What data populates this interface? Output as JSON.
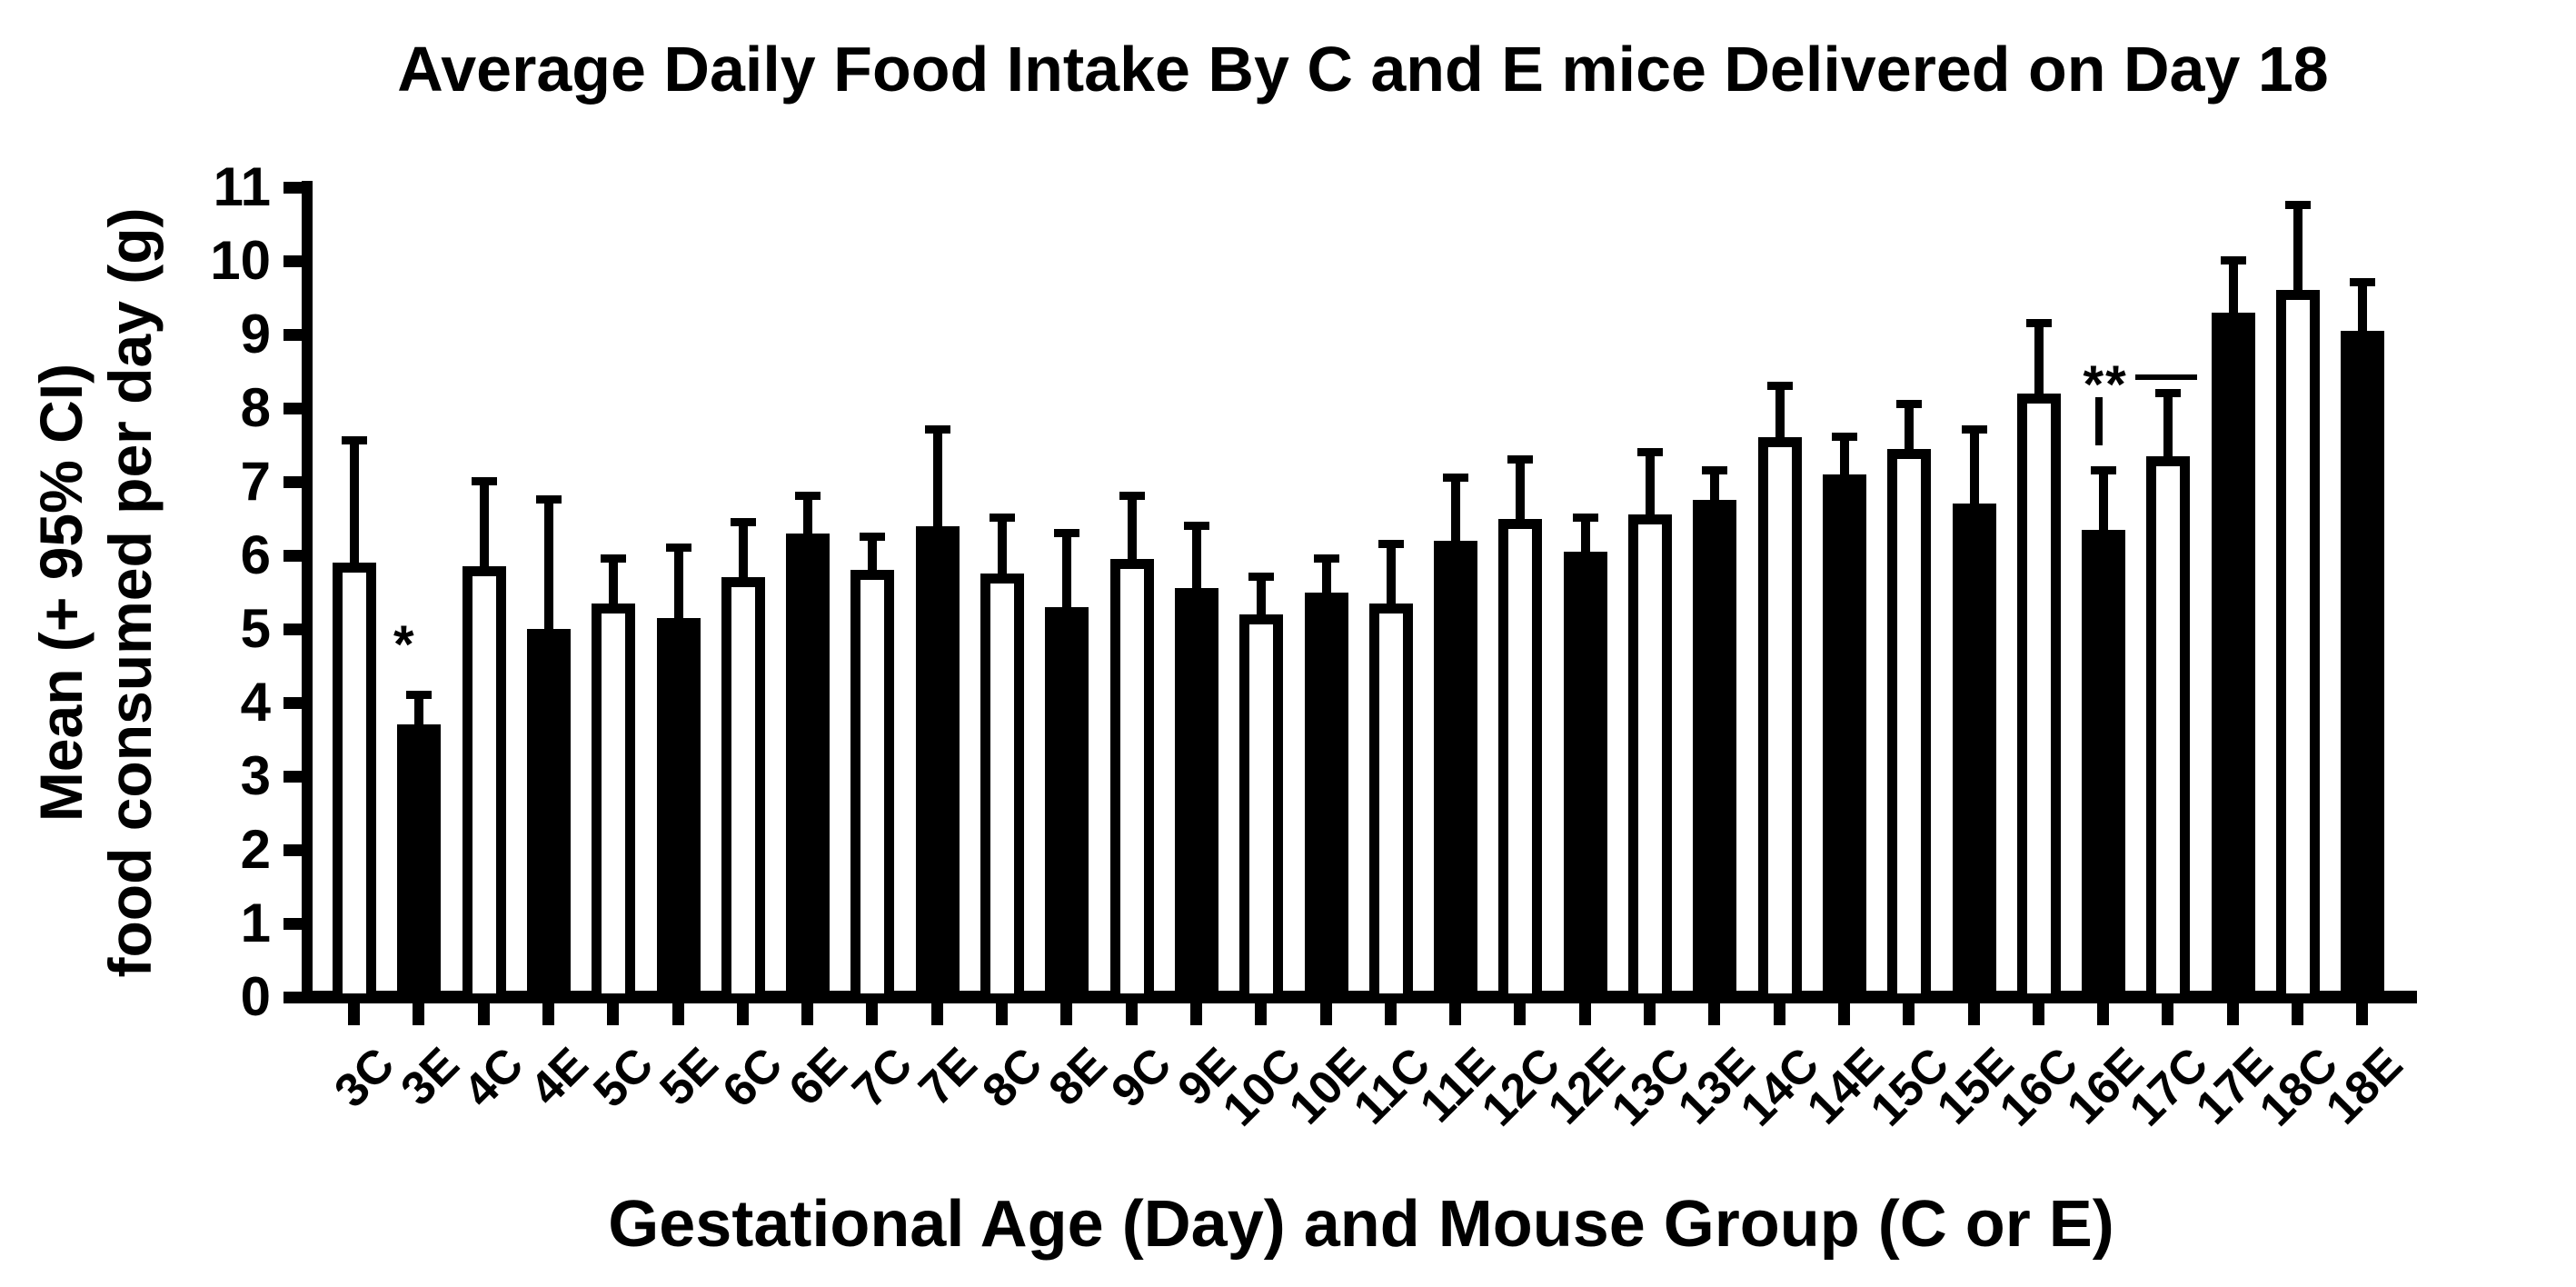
{
  "colors": {
    "foreground": "#000000",
    "background": "#FFFFFF"
  },
  "chart_data": {
    "type": "bar",
    "title": "Average Daily Food Intake By C and E mice Delivered on Day 18",
    "xlabel": "Gestational Age (Day) and Mouse Group (C or E)",
    "ylabel_line1": "Mean (+ 95% CI)",
    "ylabel_line2": "food consumed per day (g)",
    "ylim": [
      0,
      11
    ],
    "ytick_labels": [
      "0",
      "1",
      "2",
      "3",
      "4",
      "5",
      "6",
      "7",
      "8",
      "9",
      "10",
      "11"
    ],
    "grid": false,
    "legend_position": "none",
    "bar_styles": {
      "C": {
        "fill": "#FFFFFF",
        "outline": "#000000"
      },
      "E": {
        "fill": "#000000",
        "outline": "#000000"
      }
    },
    "error_bars": "upper 95% CI only",
    "categories": [
      "3C",
      "3E",
      "4C",
      "4E",
      "5C",
      "5E",
      "6C",
      "6E",
      "7C",
      "7E",
      "8C",
      "8E",
      "9C",
      "9E",
      "10C",
      "10E",
      "11C",
      "11E",
      "12C",
      "12E",
      "13C",
      "13E",
      "14C",
      "14E",
      "15C",
      "15E",
      "16C",
      "16E",
      "17C",
      "17E",
      "18C",
      "18E"
    ],
    "values": [
      5.9,
      3.7,
      5.85,
      5.0,
      5.35,
      5.15,
      5.7,
      6.3,
      5.8,
      6.4,
      5.75,
      5.3,
      5.95,
      5.55,
      5.2,
      5.5,
      5.35,
      6.2,
      6.5,
      6.05,
      6.55,
      6.75,
      7.6,
      7.1,
      7.45,
      6.7,
      8.2,
      6.35,
      7.35,
      9.3,
      9.6,
      9.05
    ],
    "ci_upper": [
      7.6,
      4.15,
      7.05,
      6.8,
      6.0,
      6.15,
      6.5,
      6.85,
      6.3,
      7.75,
      6.55,
      6.35,
      6.85,
      6.45,
      5.75,
      6.0,
      6.2,
      7.1,
      7.35,
      6.55,
      7.45,
      7.2,
      8.35,
      7.65,
      8.1,
      7.75,
      9.2,
      7.2,
      8.25,
      10.05,
      10.8,
      9.75
    ],
    "annotations": [
      {
        "symbol": "*",
        "bar": "3E"
      },
      {
        "symbol": "**",
        "bar": "16E",
        "line_extends_toward": "17C"
      }
    ]
  }
}
